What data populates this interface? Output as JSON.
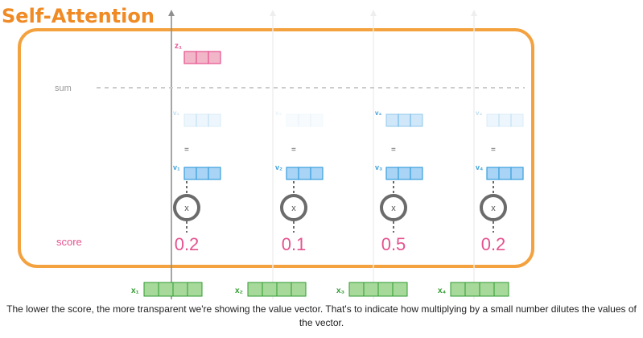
{
  "title": "Self-Attention",
  "z_label": "z₁",
  "sum_label": "sum",
  "score_label": "score",
  "equals_sign": "=",
  "multiply_sign": "x",
  "columns": [
    {
      "v_label": "v₁",
      "score": "0.2",
      "score_value": 0.2,
      "x_label": "x₁"
    },
    {
      "v_label": "v₂",
      "score": "0.1",
      "score_value": 0.1,
      "x_label": "x₂"
    },
    {
      "v_label": "v₃",
      "score": "0.5",
      "score_value": 0.5,
      "x_label": "x₃"
    },
    {
      "v_label": "v₄",
      "score": "0.2",
      "score_value": 0.2,
      "x_label": "x₄"
    }
  ],
  "caption": "The lower the score, the more transparent we're showing the value vector. That's to indicate how multiplying by a small number dilutes the values of the vector.",
  "colors": {
    "title": "#f08a24",
    "frame": "#f3a23f",
    "pink": "#e5538f",
    "pink_cell": "#f2b6c9",
    "blue": "#3a9fdb",
    "blue_cell": "#a9d4f5",
    "green": "#2f9a2f",
    "green_cell": "#a7d99b",
    "circle": "#6b6b6b",
    "sum_line": "#cccccc",
    "grey_text": "#9a9a9a"
  }
}
